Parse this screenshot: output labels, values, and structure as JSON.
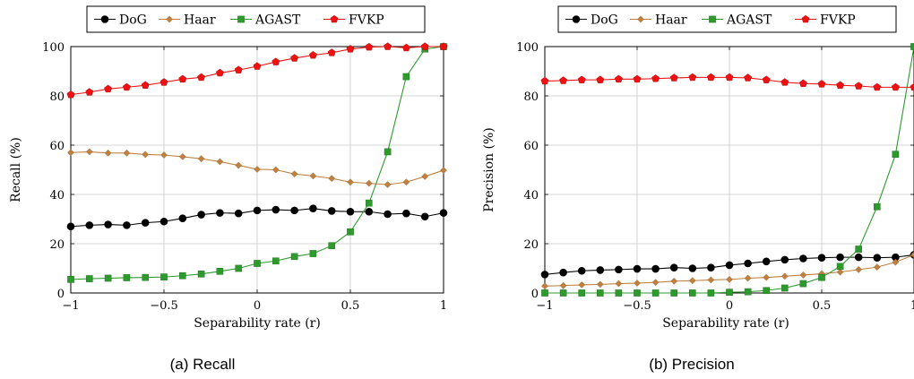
{
  "legend_series": [
    "DoG",
    "Haar",
    "AGAST",
    "FVKP"
  ],
  "colors": {
    "DoG": "#000000",
    "Haar": "#c08040",
    "AGAST": "#2e9a2e",
    "FVKP": "#ee1111"
  },
  "chart_data": [
    {
      "type": "line",
      "caption": "(a) Recall",
      "xlabel": "Separability rate (r)",
      "ylabel": "Recall (%)",
      "xlim": [
        -1,
        1
      ],
      "ylim": [
        0,
        100
      ],
      "xticks": [
        -1,
        -0.5,
        0,
        0.5,
        1
      ],
      "xtick_labels": [
        "−1",
        "−0.5",
        "0",
        "0.5",
        "1"
      ],
      "yticks": [
        0,
        20,
        40,
        60,
        80,
        100
      ],
      "ytick_labels": [
        "0",
        "20",
        "40",
        "60",
        "80",
        "100"
      ],
      "grid": true,
      "legend_position": "top-center",
      "x": [
        -1,
        -0.9,
        -0.8,
        -0.7,
        -0.6,
        -0.5,
        -0.4,
        -0.3,
        -0.2,
        -0.1,
        0,
        0.1,
        0.2,
        0.3,
        0.4,
        0.5,
        0.6,
        0.7,
        0.8,
        0.9,
        1
      ],
      "series": [
        {
          "name": "DoG",
          "marker": "circle",
          "values": [
            27,
            27.5,
            27.8,
            27.5,
            28.5,
            29,
            30.3,
            31.8,
            32.5,
            32.3,
            33.5,
            33.8,
            33.5,
            34.3,
            33.3,
            33,
            33,
            32,
            32.3,
            31,
            32.5
          ]
        },
        {
          "name": "Haar",
          "marker": "diamond",
          "values": [
            57,
            57.3,
            56.8,
            56.8,
            56.2,
            56,
            55.3,
            54.5,
            53.3,
            51.8,
            50.2,
            50,
            48.3,
            47.5,
            46.5,
            45,
            44.5,
            44,
            45,
            47.3,
            49.8
          ]
        },
        {
          "name": "AGAST",
          "marker": "square",
          "values": [
            5.5,
            5.8,
            6,
            6.2,
            6.3,
            6.5,
            7,
            7.7,
            8.8,
            10,
            12,
            13,
            14.8,
            16,
            19.2,
            24.8,
            36.5,
            57.3,
            87.8,
            99,
            100
          ]
        },
        {
          "name": "FVKP",
          "marker": "pentagon",
          "values": [
            80.5,
            81.5,
            82.8,
            83.5,
            84.3,
            85.5,
            86.8,
            87.5,
            89.3,
            90.5,
            92,
            93.8,
            95.3,
            96.5,
            97.5,
            99,
            99.8,
            100,
            99.5,
            100,
            100
          ]
        }
      ]
    },
    {
      "type": "line",
      "caption": "(b) Precision",
      "xlabel": "Separability rate (r)",
      "ylabel": "Precision (%)",
      "xlim": [
        -1,
        1
      ],
      "ylim": [
        0,
        100
      ],
      "xticks": [
        -1,
        -0.5,
        0,
        0.5,
        1
      ],
      "xtick_labels": [
        "−1",
        "−0.5",
        "0",
        "0.5",
        "1"
      ],
      "yticks": [
        0,
        20,
        40,
        60,
        80,
        100
      ],
      "ytick_labels": [
        "0",
        "20",
        "40",
        "60",
        "80",
        "100"
      ],
      "grid": true,
      "legend_position": "top-center",
      "x": [
        -1,
        -0.9,
        -0.8,
        -0.7,
        -0.6,
        -0.5,
        -0.4,
        -0.3,
        -0.2,
        -0.1,
        0,
        0.1,
        0.2,
        0.3,
        0.4,
        0.5,
        0.6,
        0.7,
        0.8,
        0.9,
        1
      ],
      "series": [
        {
          "name": "DoG",
          "marker": "circle",
          "values": [
            7.5,
            8.3,
            9,
            9.3,
            9.5,
            9.8,
            9.8,
            10.3,
            10,
            10.3,
            11.3,
            12,
            12.8,
            13.5,
            14,
            14.3,
            14.5,
            14.5,
            14.3,
            14.5,
            15.5
          ]
        },
        {
          "name": "Haar",
          "marker": "diamond",
          "values": [
            2.8,
            3,
            3.3,
            3.5,
            3.8,
            4,
            4.3,
            4.8,
            5,
            5.3,
            5.5,
            6,
            6.3,
            6.8,
            7.3,
            7.8,
            8.5,
            9.5,
            10.5,
            12.5,
            15.5
          ]
        },
        {
          "name": "AGAST",
          "marker": "square",
          "values": [
            0,
            0,
            0,
            0,
            0,
            0,
            0,
            0,
            0,
            0,
            0.3,
            0.5,
            1,
            2,
            3.8,
            6.3,
            10.8,
            17.8,
            35,
            56.3,
            100
          ]
        },
        {
          "name": "FVKP",
          "marker": "pentagon",
          "values": [
            86,
            86.2,
            86.5,
            86.5,
            86.8,
            86.8,
            87,
            87.3,
            87.5,
            87.5,
            87.5,
            87.3,
            86.5,
            85.5,
            85,
            84.8,
            84.3,
            84,
            83.5,
            83.5,
            83.5
          ]
        }
      ]
    }
  ]
}
